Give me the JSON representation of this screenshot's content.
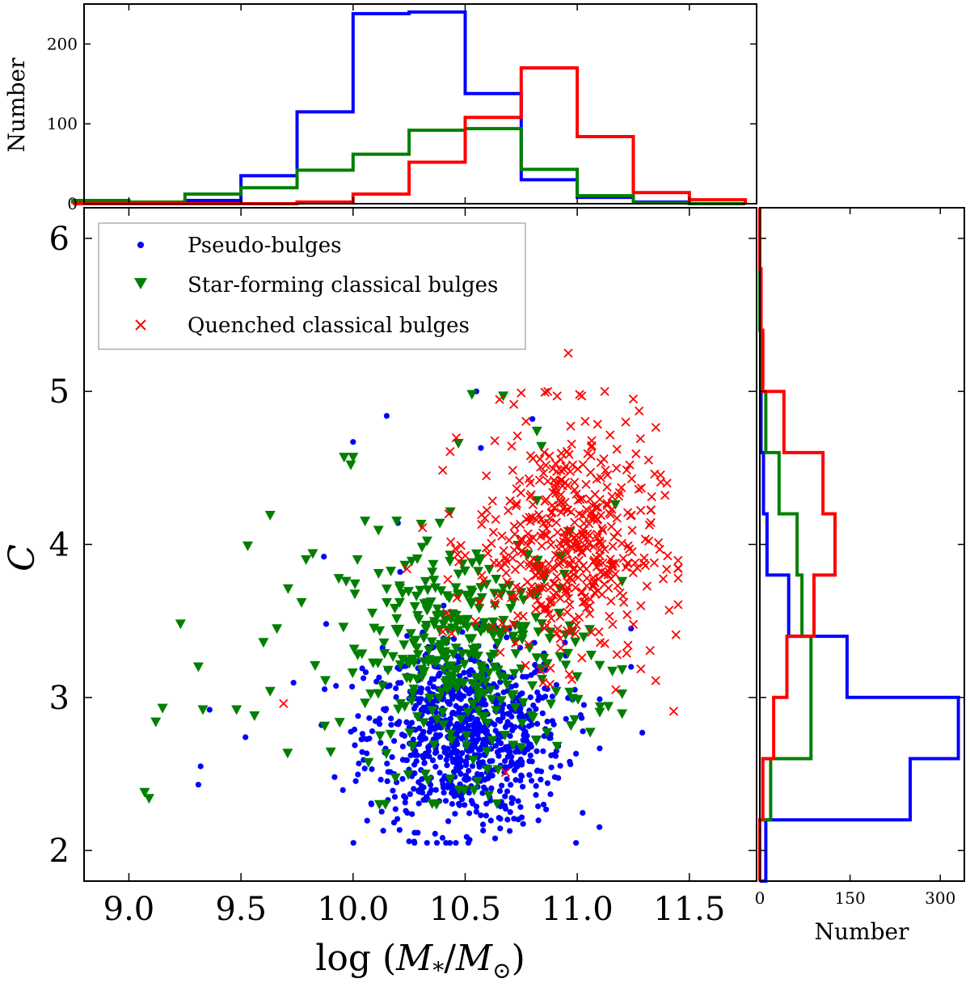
{
  "chart_data": [
    {
      "id": "scatter-main",
      "type": "scatter",
      "xlabel": "log (M*/M⊙)",
      "ylabel": "C",
      "xlim": [
        8.8,
        11.8
      ],
      "ylim": [
        1.8,
        6.2
      ],
      "xticks": [
        9.0,
        9.5,
        10.0,
        10.5,
        11.0,
        11.5
      ],
      "xtick_labels": [
        "9.0",
        "9.5",
        "10.0",
        "10.5",
        "11.0",
        "11.5"
      ],
      "yticks": [
        2,
        3,
        4,
        5,
        6
      ],
      "ytick_labels": [
        "2",
        "3",
        "4",
        "5",
        "6"
      ],
      "legend_position": "top-left",
      "series": [
        {
          "name": "Pseudo-bulges",
          "marker": "circle",
          "color": "#0000ff",
          "count": 900,
          "points": [
            [
              9.31,
              2.43
            ],
            [
              9.32,
              2.55
            ],
            [
              9.36,
              2.92
            ],
            [
              9.52,
              2.74
            ],
            [
              9.87,
              3.92
            ],
            [
              9.88,
              3.48
            ],
            [
              10.0,
              4.67
            ],
            [
              10.15,
              4.84
            ],
            [
              10.2,
              4.14
            ],
            [
              10.21,
              3.82
            ],
            [
              10.55,
              5.0
            ],
            [
              10.57,
              4.63
            ],
            [
              10.8,
              4.82
            ],
            [
              11.24,
              3.45
            ],
            [
              11.24,
              3.2
            ],
            [
              11.29,
              2.77
            ],
            [
              10.25,
              2.06
            ],
            [
              10.33,
              2.05
            ],
            [
              10.52,
              2.07
            ],
            [
              10.58,
              2.13
            ],
            [
              10.85,
              2.3
            ],
            [
              10.9,
              2.48
            ]
          ],
          "cloud": {
            "x_mean": 10.5,
            "x_sd": 0.22,
            "y_mean": 2.75,
            "y_sd": 0.3,
            "x_range": [
              9.7,
              11.1
            ],
            "y_range": [
              2.05,
              3.6
            ]
          }
        },
        {
          "name": "Star-forming classical bulges",
          "marker": "triangle-down",
          "color": "#007f00",
          "count": 400,
          "points": [
            [
              9.07,
              2.38
            ],
            [
              9.09,
              2.34
            ],
            [
              9.12,
              2.84
            ],
            [
              9.15,
              2.93
            ],
            [
              9.23,
              3.48
            ],
            [
              9.31,
              3.2
            ],
            [
              9.33,
              2.92
            ],
            [
              9.48,
              2.92
            ],
            [
              9.53,
              3.99
            ],
            [
              9.56,
              2.88
            ],
            [
              9.63,
              4.19
            ],
            [
              9.63,
              3.04
            ],
            [
              9.71,
              3.71
            ],
            [
              9.77,
              3.62
            ],
            [
              9.79,
              3.9
            ],
            [
              9.82,
              3.94
            ],
            [
              9.96,
              4.57
            ],
            [
              9.99,
              4.52
            ],
            [
              10.0,
              4.57
            ],
            [
              10.47,
              4.66
            ],
            [
              10.53,
              4.98
            ],
            [
              10.67,
              4.97
            ],
            [
              10.82,
              4.74
            ],
            [
              10.84,
              4.64
            ],
            [
              11.17,
              4.26
            ],
            [
              11.1,
              3.21
            ]
          ],
          "cloud": {
            "x_mean": 10.5,
            "x_sd": 0.28,
            "y_mean": 3.3,
            "y_sd": 0.38,
            "x_range": [
              9.6,
              11.2
            ],
            "y_range": [
              2.3,
              4.7
            ]
          }
        },
        {
          "name": "Quenched classical bulges",
          "marker": "x",
          "color": "#ff0000",
          "count": 500,
          "points": [
            [
              9.69,
              2.96
            ],
            [
              10.24,
              3.84
            ],
            [
              10.31,
              4.11
            ],
            [
              10.96,
              5.25
            ],
            [
              10.68,
              2.51
            ],
            [
              11.4,
              4.4
            ],
            [
              11.45,
              3.78
            ],
            [
              11.44,
              3.41
            ],
            [
              11.43,
              2.91
            ],
            [
              11.41,
              3.57
            ],
            [
              11.35,
              3.11
            ],
            [
              11.02,
              4.97
            ],
            [
              11.25,
              4.95
            ],
            [
              10.91,
              4.97
            ],
            [
              10.75,
              4.99
            ]
          ],
          "cloud": {
            "x_mean": 10.95,
            "x_sd": 0.2,
            "y_mean": 4.0,
            "y_sd": 0.38,
            "x_range": [
              10.4,
              11.45
            ],
            "y_range": [
              2.8,
              5.0
            ]
          }
        }
      ]
    },
    {
      "id": "hist-top",
      "type": "histogram",
      "orientation": "vertical",
      "ylabel": "Number",
      "xlim": [
        8.8,
        11.8
      ],
      "ylim": [
        0,
        250
      ],
      "yticks": [
        0,
        100,
        200
      ],
      "ytick_labels": [
        "0",
        "100",
        "200"
      ],
      "bin_edges": [
        8.75,
        9.0,
        9.25,
        9.5,
        9.75,
        10.0,
        10.25,
        10.5,
        10.75,
        11.0,
        11.25,
        11.5,
        11.75
      ],
      "series": [
        {
          "name": "Pseudo-bulges",
          "color": "#0000ff",
          "counts": [
            2,
            2,
            4,
            35,
            115,
            238,
            240,
            138,
            30,
            8,
            2,
            0
          ]
        },
        {
          "name": "Star-forming classical bulges",
          "color": "#007f00",
          "counts": [
            4,
            2,
            12,
            20,
            42,
            62,
            92,
            94,
            43,
            10,
            1,
            0
          ]
        },
        {
          "name": "Quenched classical bulges",
          "color": "#ff0000",
          "counts": [
            0,
            0,
            0,
            0,
            2,
            12,
            52,
            108,
            170,
            84,
            14,
            5
          ]
        }
      ]
    },
    {
      "id": "hist-right",
      "type": "histogram",
      "orientation": "horizontal",
      "xlabel": "Number",
      "xlim": [
        0,
        340
      ],
      "xticks": [
        0,
        150,
        300
      ],
      "xtick_labels": [
        "0",
        "150",
        "300"
      ],
      "ylim": [
        1.8,
        6.2
      ],
      "bin_edges": [
        1.8,
        2.2,
        2.6,
        3.0,
        3.4,
        3.8,
        4.2,
        4.6,
        5.0,
        5.4,
        5.8,
        6.2
      ],
      "series": [
        {
          "name": "Pseudo-bulges",
          "color": "#0000ff",
          "counts": [
            10,
            250,
            330,
            145,
            48,
            12,
            6,
            2,
            2,
            1,
            0
          ]
        },
        {
          "name": "Star-forming classical bulges",
          "color": "#007f00",
          "counts": [
            0,
            18,
            85,
            85,
            70,
            62,
            32,
            10,
            4,
            0,
            0
          ]
        },
        {
          "name": "Quenched classical bulges",
          "color": "#ff0000",
          "counts": [
            0,
            5,
            23,
            45,
            90,
            125,
            105,
            40,
            5,
            2,
            0
          ]
        }
      ]
    }
  ]
}
